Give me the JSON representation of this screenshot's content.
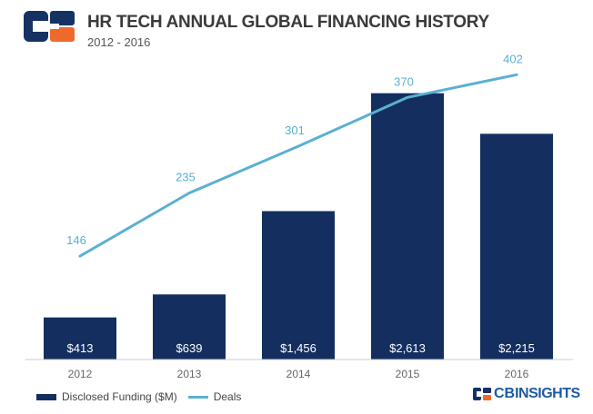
{
  "header": {
    "title": "HR TECH ANNUAL GLOBAL FINANCING HISTORY",
    "subtitle": "2012 - 2016"
  },
  "brand": {
    "prefix": "CB",
    "suffix": "INSIGHTS"
  },
  "colors": {
    "bar": "#142f5f",
    "line": "#5ab0d2",
    "logo_dark": "#163263",
    "logo_orange": "#ee6a2c",
    "axis": "#cccccc",
    "tick_text": "#666666"
  },
  "chart_data": {
    "type": "bar",
    "categories": [
      "2012",
      "2013",
      "2014",
      "2015",
      "2016"
    ],
    "series": [
      {
        "name": "Disclosed Funding ($M)",
        "type": "bar",
        "values": [
          413,
          639,
          1456,
          2613,
          2215
        ],
        "labels": [
          "$413",
          "$639",
          "$1,456",
          "$2,613",
          "$2,215"
        ]
      },
      {
        "name": "Deals",
        "type": "line",
        "values": [
          146,
          235,
          301,
          370,
          402
        ],
        "labels": [
          "146",
          "235",
          "301",
          "370",
          "402"
        ]
      }
    ],
    "ylim": [
      0,
      3100
    ],
    "y2lim": [
      0,
      446
    ],
    "grid": false,
    "legend": "bottom-left"
  }
}
